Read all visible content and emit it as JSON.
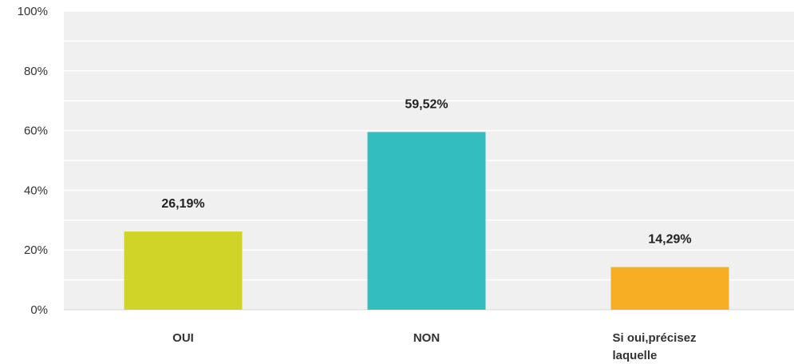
{
  "chart_data": {
    "type": "bar",
    "categories": [
      [
        "OUI"
      ],
      [
        "NON"
      ],
      [
        "Si oui,précisez",
        "laquelle"
      ]
    ],
    "values": [
      26.19,
      59.52,
      14.29
    ],
    "data_labels": [
      "26,19%",
      "59,52%",
      "14,29%"
    ],
    "colors": [
      "#cfd427",
      "#33bdbf",
      "#f7ae24"
    ],
    "ylim": [
      0,
      100
    ],
    "yticks": [
      0,
      20,
      40,
      60,
      80,
      100
    ],
    "ytick_labels": [
      "0%",
      "20%",
      "40%",
      "60%",
      "80%",
      "100%"
    ],
    "title": "",
    "xlabel": "",
    "ylabel": "",
    "grid": true,
    "plot_background": "#f0f0f0",
    "gridline_color": "#ffffff"
  }
}
